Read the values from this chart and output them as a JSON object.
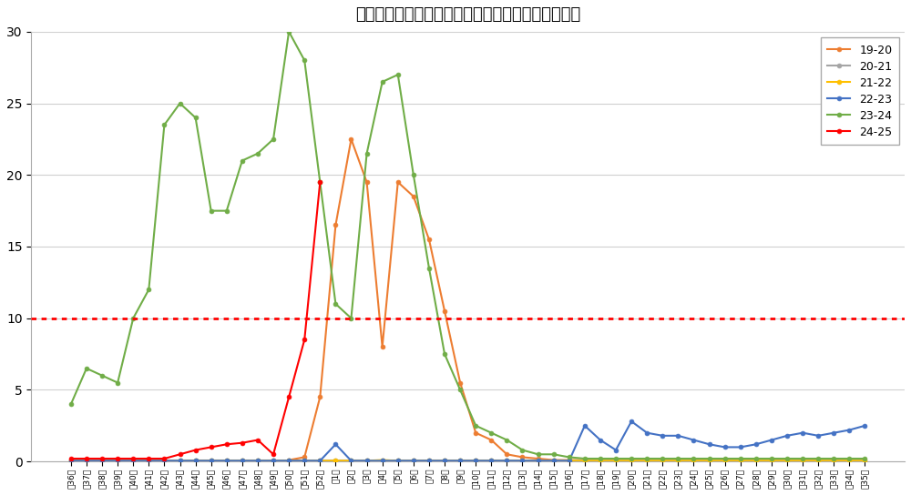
{
  "title": "インフルエンザの定点当りの患者発生状況（県内）",
  "xlabels": [
    "第36週",
    "第37週",
    "第38週",
    "第39週",
    "第40週",
    "第41週",
    "第42週",
    "第43週",
    "第44週",
    "第45週",
    "第46週",
    "第47週",
    "第48週",
    "第49週",
    "第50週",
    "第51週",
    "第52週",
    "第1週",
    "第2週",
    "第3週",
    "第4週",
    "第5週",
    "第6週",
    "第7週",
    "第8週",
    "第9週",
    "第10週",
    "第11週",
    "第12週",
    "第13週",
    "第14週",
    "第15週",
    "第16週",
    "第17週",
    "第18週",
    "第19週",
    "第20週",
    "第21週",
    "第22週",
    "第23週",
    "第24週",
    "第25週",
    "第26週",
    "第27週",
    "第28週",
    "第29週",
    "第30週",
    "第31週",
    "第32週",
    "第33週",
    "第34週",
    "第35週"
  ],
  "series": {
    "19-20": {
      "color": "#ED7D31",
      "data": [
        null,
        null,
        null,
        null,
        null,
        null,
        null,
        null,
        null,
        null,
        null,
        null,
        null,
        null,
        0.1,
        0.3,
        4.5,
        16.5,
        22.5,
        19.5,
        8.0,
        19.5,
        18.5,
        15.5,
        10.5,
        5.5,
        2.0,
        1.5,
        0.5,
        0.3,
        0.2,
        0.1,
        0.1,
        0.1,
        0.1,
        null,
        null,
        null,
        null,
        null,
        null,
        null,
        null,
        null,
        null,
        null,
        null,
        null,
        null,
        null,
        null,
        null
      ]
    },
    "20-21": {
      "color": "#A5A5A5",
      "data": [
        0.05,
        0.05,
        0.05,
        0.05,
        0.05,
        0.05,
        0.05,
        0.05,
        0.05,
        0.05,
        0.05,
        0.05,
        0.05,
        0.05,
        0.05,
        0.05,
        0.05,
        0.05,
        0.05,
        0.05,
        0.05,
        0.05,
        0.05,
        0.05,
        0.05,
        0.05,
        0.05,
        0.05,
        0.05,
        0.05,
        0.05,
        0.05,
        0.05,
        0.05,
        0.05,
        0.05,
        0.05,
        0.05,
        0.05,
        0.05,
        0.05,
        0.05,
        0.05,
        0.05,
        0.05,
        0.05,
        0.05,
        0.05,
        0.05,
        0.05,
        0.05,
        0.05
      ]
    },
    "21-22": {
      "color": "#FFC000",
      "data": [
        0.05,
        0.05,
        0.05,
        0.05,
        0.05,
        0.05,
        0.05,
        0.05,
        0.05,
        0.05,
        0.05,
        0.05,
        0.05,
        0.05,
        0.05,
        0.05,
        0.05,
        0.05,
        0.05,
        0.05,
        0.1,
        0.05,
        0.05,
        0.05,
        0.05,
        0.05,
        0.05,
        0.05,
        0.05,
        0.05,
        0.05,
        0.05,
        0.05,
        0.05,
        0.05,
        0.05,
        0.05,
        0.05,
        0.05,
        0.05,
        0.05,
        0.05,
        0.05,
        0.05,
        0.05,
        0.05,
        0.05,
        0.05,
        0.05,
        0.05,
        0.05,
        0.05
      ]
    },
    "22-23": {
      "color": "#4472C4",
      "data": [
        0.05,
        0.05,
        0.05,
        0.05,
        0.05,
        0.05,
        0.05,
        0.05,
        0.05,
        0.05,
        0.05,
        0.05,
        0.05,
        0.05,
        0.05,
        0.05,
        0.05,
        1.2,
        0.05,
        0.05,
        0.05,
        0.05,
        0.05,
        0.05,
        0.05,
        0.05,
        0.05,
        0.05,
        0.05,
        0.05,
        0.05,
        0.05,
        0.05,
        2.5,
        1.5,
        0.8,
        2.8,
        2.0,
        1.8,
        1.8,
        1.5,
        1.2,
        1.0,
        1.0,
        1.2,
        1.5,
        1.8,
        2.0,
        1.8,
        2.0,
        2.2,
        2.5
      ]
    },
    "23-24": {
      "color": "#70AD47",
      "data": [
        4.0,
        6.5,
        6.0,
        5.5,
        10.0,
        12.0,
        23.5,
        25.0,
        24.0,
        17.5,
        17.5,
        21.0,
        21.5,
        22.5,
        30.0,
        28.0,
        19.5,
        11.0,
        10.0,
        21.5,
        26.5,
        27.0,
        20.0,
        13.5,
        7.5,
        5.0,
        2.5,
        2.0,
        1.5,
        0.8,
        0.5,
        0.5,
        0.3,
        0.2,
        0.2,
        0.2,
        0.2,
        0.2,
        0.2,
        0.2,
        0.2,
        0.2,
        0.2,
        0.2,
        0.2,
        0.2,
        0.2,
        0.2,
        0.2,
        0.2,
        0.2,
        0.2
      ]
    },
    "24-25": {
      "color": "#FF0000",
      "data": [
        0.2,
        0.2,
        0.2,
        0.2,
        0.2,
        0.2,
        0.2,
        0.5,
        0.8,
        1.0,
        1.2,
        1.3,
        1.5,
        0.5,
        4.5,
        8.5,
        19.5,
        null,
        null,
        null,
        null,
        null,
        null,
        null,
        null,
        null,
        null,
        null,
        null,
        null,
        null,
        null,
        null,
        null,
        null,
        null,
        null,
        null,
        null,
        null,
        null,
        null,
        null,
        null,
        null,
        null,
        null,
        null,
        null,
        null,
        null,
        null
      ]
    }
  },
  "threshold": 10.0,
  "threshold_color": "#FF0000",
  "ylim": [
    0,
    30
  ],
  "yticks": [
    0,
    5,
    10,
    15,
    20,
    25,
    30
  ],
  "background_color": "#FFFFFF",
  "grid_color": "#D0D0D0",
  "series_order": [
    "19-20",
    "20-21",
    "21-22",
    "22-23",
    "23-24",
    "24-25"
  ]
}
